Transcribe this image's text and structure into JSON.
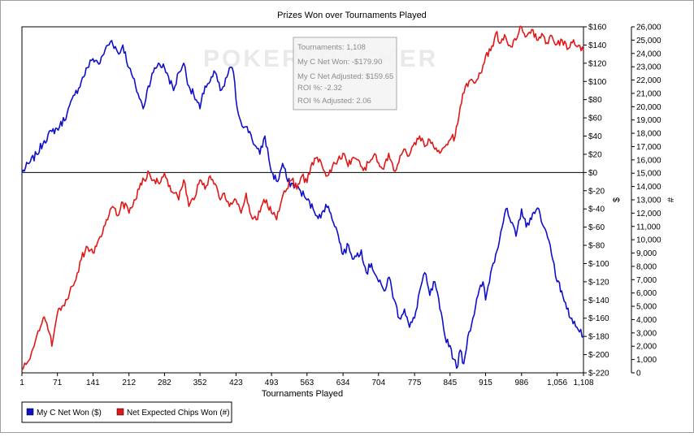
{
  "chart_data": {
    "type": "line",
    "title": "Prizes Won over Tournaments Played",
    "xlabel": "Tournaments Played",
    "ylabel_left": "$",
    "ylabel_right": "#",
    "xlim": [
      1,
      1108
    ],
    "x_ticks": [
      1,
      71,
      141,
      212,
      282,
      352,
      423,
      493,
      563,
      634,
      704,
      775,
      845,
      915,
      986,
      1056,
      1108
    ],
    "x_tick_labels": [
      "1",
      "71",
      "141",
      "212",
      "282",
      "352",
      "423",
      "493",
      "563",
      "634",
      "704",
      "775",
      "845",
      "915",
      "986",
      "1,056",
      "1,108"
    ],
    "y_left": {
      "lim": [
        -220,
        160
      ],
      "ticks": [
        -220,
        -200,
        -180,
        -160,
        -140,
        -120,
        -100,
        -80,
        -60,
        -40,
        -20,
        0,
        20,
        40,
        60,
        80,
        100,
        120,
        140,
        160
      ],
      "tick_labels": [
        "$-220",
        "$-200",
        "$-180",
        "$-160",
        "$-140",
        "$-120",
        "$-100",
        "$-80",
        "$-60",
        "$-40",
        "$-20",
        "$0",
        "$20",
        "$40",
        "$60",
        "$80",
        "$100",
        "$120",
        "$140",
        "$160"
      ]
    },
    "y_right": {
      "lim": [
        0,
        26000
      ],
      "ticks": [
        0,
        1000,
        2000,
        3000,
        4000,
        5000,
        6000,
        7000,
        8000,
        9000,
        10000,
        11000,
        12000,
        13000,
        14000,
        15000,
        16000,
        17000,
        18000,
        19000,
        20000,
        21000,
        22000,
        23000,
        24000,
        25000,
        26000
      ],
      "tick_labels": [
        "0",
        "1,000",
        "2,000",
        "3,000",
        "4,000",
        "5,000",
        "6,000",
        "7,000",
        "8,000",
        "9,000",
        "10,000",
        "11,000",
        "12,000",
        "13,000",
        "14,000",
        "15,000",
        "16,000",
        "17,000",
        "18,000",
        "19,000",
        "20,000",
        "21,000",
        "22,000",
        "23,000",
        "24,000",
        "25,000",
        "26,000"
      ]
    },
    "grid": false,
    "zero_line": true,
    "legend_position": "bottom-left",
    "series": [
      {
        "name": "My C Net Won ($)",
        "axis": "left",
        "color": "#1010c8",
        "x": [
          1,
          15,
          30,
          45,
          60,
          75,
          90,
          105,
          118,
          130,
          141,
          155,
          165,
          178,
          192,
          200,
          212,
          225,
          240,
          250,
          260,
          270,
          282,
          290,
          300,
          310,
          320,
          330,
          340,
          352,
          362,
          372,
          382,
          392,
          400,
          410,
          418,
          423,
          430,
          440,
          450,
          460,
          470,
          480,
          493,
          505,
          515,
          525,
          540,
          550,
          563,
          575,
          590,
          600,
          610,
          620,
          634,
          645,
          655,
          670,
          680,
          690,
          704,
          715,
          725,
          735,
          745,
          755,
          765,
          775,
          785,
          795,
          805,
          815,
          825,
          835,
          845,
          852,
          858,
          865,
          872,
          880,
          890,
          900,
          910,
          915,
          925,
          935,
          945,
          955,
          965,
          975,
          986,
          995,
          1003,
          1012,
          1020,
          1030,
          1040,
          1050,
          1056,
          1065,
          1075,
          1085,
          1095,
          1100,
          1108
        ],
        "values": [
          0,
          10,
          20,
          35,
          45,
          50,
          65,
          85,
          100,
          115,
          125,
          120,
          135,
          145,
          130,
          140,
          115,
          95,
          70,
          95,
          110,
          120,
          115,
          105,
          90,
          110,
          120,
          95,
          85,
          70,
          95,
          100,
          110,
          90,
          95,
          115,
          110,
          80,
          60,
          50,
          45,
          30,
          20,
          40,
          0,
          -10,
          10,
          -10,
          -15,
          -20,
          -30,
          -40,
          -50,
          -35,
          -45,
          -60,
          -90,
          -80,
          -95,
          -85,
          -110,
          -100,
          -120,
          -130,
          -115,
          -140,
          -160,
          -150,
          -170,
          -160,
          -130,
          -110,
          -135,
          -120,
          -150,
          -180,
          -190,
          -205,
          -215,
          -195,
          -210,
          -180,
          -160,
          -135,
          -120,
          -140,
          -110,
          -90,
          -65,
          -40,
          -55,
          -70,
          -40,
          -60,
          -50,
          -45,
          -40,
          -60,
          -75,
          -100,
          -120,
          -130,
          -150,
          -160,
          -170,
          -175,
          -180
        ]
      },
      {
        "name": "Net Expected Chips Won (#)",
        "axis": "right",
        "color": "#e01818",
        "x": [
          1,
          12,
          25,
          38,
          45,
          55,
          60,
          71,
          80,
          90,
          100,
          110,
          118,
          128,
          141,
          150,
          160,
          170,
          180,
          190,
          200,
          212,
          222,
          232,
          242,
          252,
          262,
          272,
          282,
          290,
          300,
          310,
          320,
          330,
          340,
          352,
          362,
          372,
          382,
          392,
          400,
          410,
          423,
          433,
          443,
          453,
          463,
          473,
          483,
          493,
          503,
          513,
          523,
          533,
          543,
          553,
          563,
          573,
          583,
          593,
          603,
          613,
          624,
          634,
          644,
          654,
          664,
          674,
          684,
          694,
          704,
          714,
          724,
          734,
          744,
          754,
          764,
          775,
          785,
          795,
          805,
          815,
          825,
          835,
          845,
          855,
          865,
          875,
          885,
          895,
          905,
          915,
          925,
          935,
          945,
          955,
          965,
          975,
          986,
          996,
          1006,
          1016,
          1026,
          1036,
          1046,
          1056,
          1066,
          1076,
          1086,
          1096,
          1108
        ],
        "values": [
          200,
          800,
          2000,
          3500,
          4200,
          3000,
          2000,
          4500,
          5000,
          5500,
          6500,
          7500,
          8500,
          9500,
          9000,
          9800,
          10500,
          11500,
          12500,
          11800,
          12800,
          12000,
          13000,
          13800,
          14500,
          15000,
          14500,
          14200,
          15000,
          14000,
          13500,
          13000,
          14500,
          12500,
          13000,
          14500,
          13800,
          14800,
          14200,
          13000,
          13500,
          12500,
          13000,
          12000,
          13500,
          11800,
          11500,
          12500,
          13000,
          12000,
          11500,
          13000,
          13800,
          14500,
          13800,
          14800,
          14300,
          15800,
          16200,
          15500,
          14800,
          15500,
          16000,
          16500,
          15500,
          16200,
          16000,
          15200,
          15800,
          16300,
          15800,
          15300,
          16500,
          15200,
          15800,
          16800,
          16300,
          17300,
          17800,
          17000,
          17500,
          16800,
          16500,
          17000,
          17500,
          17800,
          20000,
          21500,
          22000,
          21800,
          22500,
          23800,
          24200,
          25500,
          24800,
          25200,
          24500,
          25000,
          26000,
          25300,
          25800,
          25000,
          25500,
          24800,
          25300,
          24700,
          25000,
          24300,
          24800,
          24500,
          24200
        ]
      }
    ],
    "tooltip": {
      "position": "top-center",
      "lines": [
        "Tournaments: 1,108",
        "My C Net Won: -$179.90",
        "My C Net Adjusted: $159.65",
        "ROI %: -2.32",
        "ROI % Adjusted: 2.06"
      ]
    },
    "watermark": "POKERTRACKER"
  }
}
